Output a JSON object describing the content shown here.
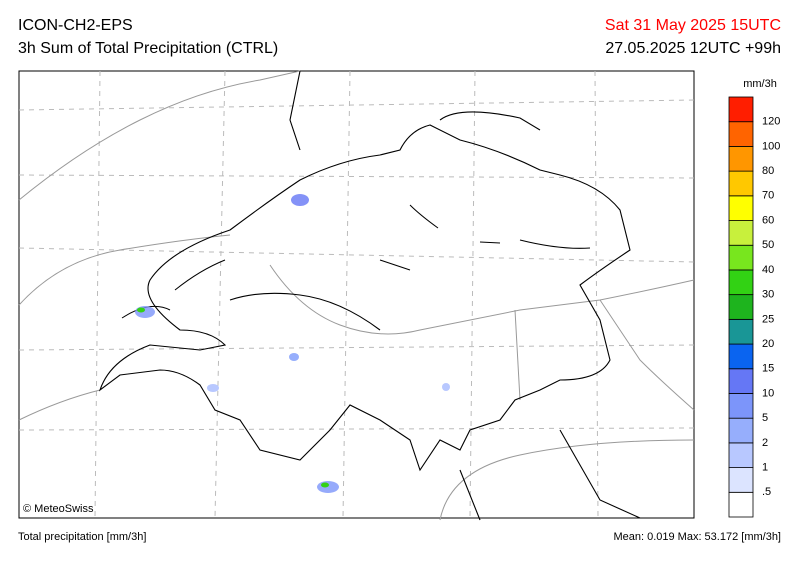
{
  "header": {
    "model": "ICON-CH2-EPS",
    "product": "3h Sum of Total Precipitation (CTRL)",
    "valid_time": "Sat 31 May 2025 15UTC",
    "run": "27.05.2025 12UTC +99h"
  },
  "map": {
    "copyright": "© MeteoSwiss"
  },
  "legend": {
    "unit": "mm/3h",
    "labels": [
      ".5",
      "1",
      "2",
      "5",
      "10",
      "15",
      "20",
      "25",
      "30",
      "40",
      "50",
      "60",
      "70",
      "80",
      "100",
      "120"
    ],
    "colors": [
      "#ffffff",
      "#dce4ff",
      "#b8c8ff",
      "#96aefc",
      "#7c95fa",
      "#6577f5",
      "#0a64f0",
      "#199696",
      "#1eb41e",
      "#32d214",
      "#78e61e",
      "#c8f03c",
      "#ffff00",
      "#ffc800",
      "#ff9600",
      "#ff6400",
      "#ff1e00"
    ]
  },
  "footer": {
    "variable": "Total precipitation [mm/3h]",
    "stats": "Mean:  0.019 Max: 53.172 [mm/3h]"
  }
}
